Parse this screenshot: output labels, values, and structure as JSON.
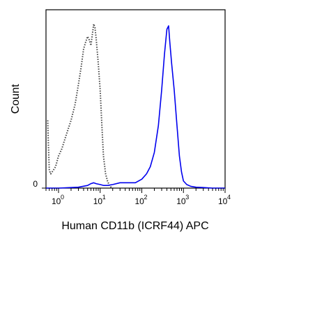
{
  "chart_data": {
    "type": "line",
    "title": "",
    "xlabel": "Human CD11b (ICRF44) APC",
    "ylabel": "Count",
    "x_scale": "log",
    "xlim": [
      0.5,
      10000
    ],
    "x_ticks": [
      {
        "value": 1,
        "base": "10",
        "exp": "0"
      },
      {
        "value": 10,
        "base": "10",
        "exp": "1"
      },
      {
        "value": 100,
        "base": "10",
        "exp": "2"
      },
      {
        "value": 1000,
        "base": "10",
        "exp": "3"
      },
      {
        "value": 10000,
        "base": "10",
        "exp": "4"
      }
    ],
    "y_ticks": [
      {
        "value": 0,
        "label": "0"
      }
    ],
    "ylim": [
      0,
      100
    ],
    "grid": false,
    "legend": "none",
    "series": [
      {
        "style": "dotted",
        "color": "#444444",
        "points": [
          [
            0.55,
            38
          ],
          [
            0.57,
            25
          ],
          [
            0.6,
            10
          ],
          [
            0.65,
            8
          ],
          [
            0.75,
            10
          ],
          [
            0.85,
            12
          ],
          [
            1.0,
            18
          ],
          [
            1.2,
            22
          ],
          [
            1.4,
            27
          ],
          [
            1.7,
            33
          ],
          [
            2.0,
            38
          ],
          [
            2.5,
            47
          ],
          [
            3.0,
            58
          ],
          [
            3.5,
            68
          ],
          [
            4.0,
            78
          ],
          [
            4.5,
            82
          ],
          [
            5.0,
            85
          ],
          [
            5.5,
            83
          ],
          [
            6.0,
            80
          ],
          [
            7.0,
            92
          ],
          [
            7.5,
            90
          ],
          [
            8.0,
            84
          ],
          [
            9.0,
            70
          ],
          [
            10.0,
            55
          ],
          [
            11.0,
            35
          ],
          [
            12.0,
            18
          ],
          [
            13.5,
            8
          ],
          [
            15.0,
            4
          ],
          [
            17.0,
            1
          ],
          [
            20.0,
            0
          ]
        ]
      },
      {
        "style": "solid",
        "color": "#0000ee",
        "points": [
          [
            0.5,
            0
          ],
          [
            1,
            0
          ],
          [
            3,
            0.5
          ],
          [
            5,
            1.5
          ],
          [
            6,
            2.5
          ],
          [
            7,
            3
          ],
          [
            8,
            2.5
          ],
          [
            10,
            2
          ],
          [
            12,
            1.5
          ],
          [
            15,
            1.5
          ],
          [
            20,
            2
          ],
          [
            30,
            3
          ],
          [
            50,
            3
          ],
          [
            70,
            3
          ],
          [
            100,
            5
          ],
          [
            130,
            8
          ],
          [
            160,
            12
          ],
          [
            200,
            20
          ],
          [
            250,
            35
          ],
          [
            300,
            55
          ],
          [
            350,
            75
          ],
          [
            400,
            89
          ],
          [
            440,
            91
          ],
          [
            470,
            82
          ],
          [
            520,
            70
          ],
          [
            600,
            55
          ],
          [
            700,
            35
          ],
          [
            800,
            18
          ],
          [
            900,
            9
          ],
          [
            1000,
            4
          ],
          [
            1200,
            2
          ],
          [
            1500,
            1
          ],
          [
            2000,
            0.5
          ],
          [
            3000,
            0.3
          ],
          [
            5000,
            0
          ],
          [
            10000,
            0
          ]
        ]
      }
    ]
  }
}
